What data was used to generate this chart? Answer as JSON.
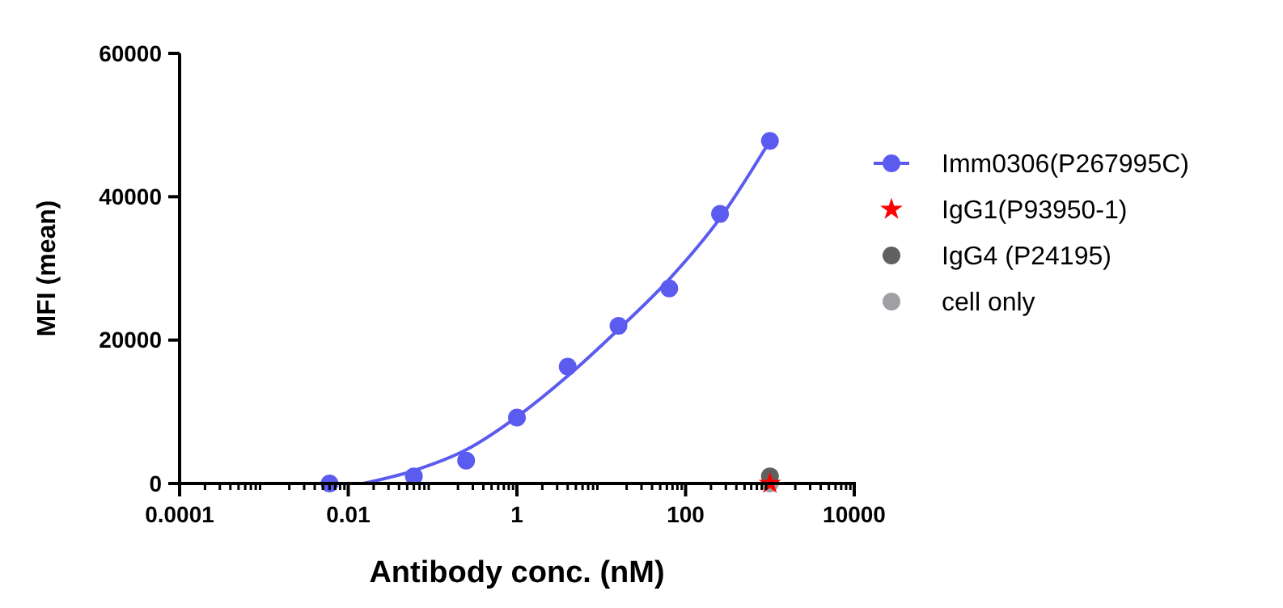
{
  "chart_data": {
    "type": "scatter",
    "xlabel": "Antibody conc. (nM)",
    "ylabel": "MFI (mean)",
    "log": "x",
    "xlim": [
      0.0001,
      10000
    ],
    "xticks": [
      0.0001,
      0.01,
      1,
      100,
      10000
    ],
    "ylim": [
      0,
      60000
    ],
    "yticks": [
      0,
      20000,
      40000,
      60000
    ],
    "legend": "right",
    "grid": false,
    "series": [
      {
        "name": "Imm0306(P267995C)",
        "color": "#5b5bf0",
        "marker": "circle",
        "x": [
          0.006,
          0.06,
          0.25,
          1,
          4,
          16,
          64,
          256,
          1000
        ],
        "values": [
          0,
          1000,
          3200,
          9200,
          16300,
          22000,
          27200,
          37600,
          47800
        ]
      },
      {
        "type": "line",
        "color": "#5b5bf0",
        "marker": "none",
        "x": [
          0.015,
          0.06,
          0.25,
          1,
          4,
          16,
          64,
          256,
          1000
        ],
        "values": [
          0,
          1800,
          4700,
          9300,
          15000,
          21500,
          28500,
          37000,
          47800
        ]
      },
      {
        "name": "IgG1(P93950-1)",
        "color": "#ff0000",
        "marker": "star",
        "x": [
          1000
        ],
        "values": [
          0
        ]
      },
      {
        "name": "IgG4 (P24195)",
        "color": "#606060",
        "marker": "circle",
        "x": [
          1000
        ],
        "values": [
          1000
        ]
      },
      {
        "name": "cell only",
        "color": "#a0a0a4",
        "marker": "circle",
        "x": [
          1000
        ],
        "values": [
          0
        ]
      }
    ]
  }
}
